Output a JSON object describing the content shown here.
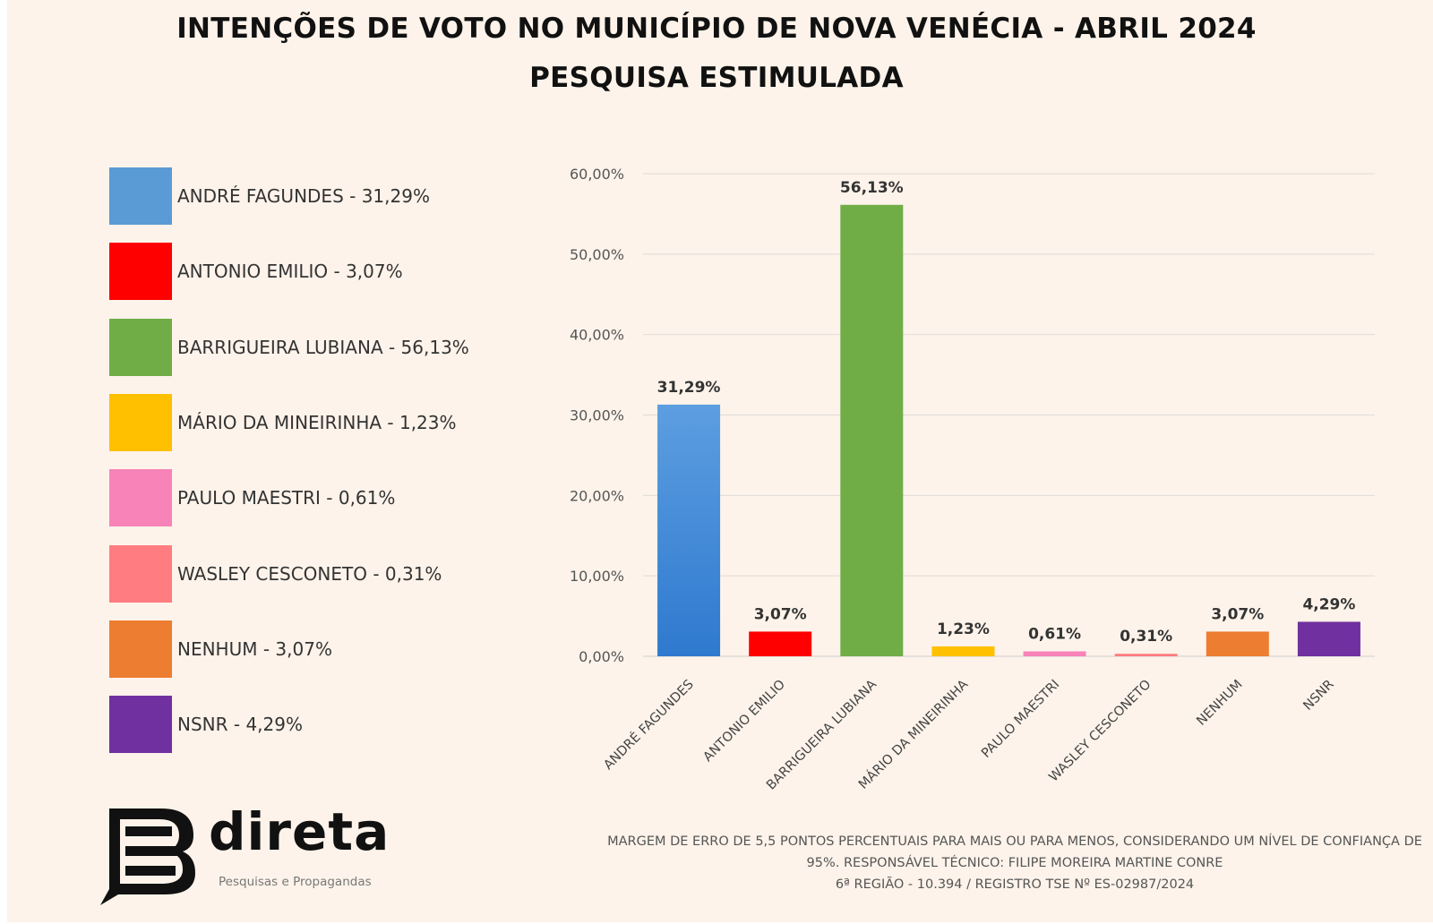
{
  "title_line1": "INTENÇÕES DE VOTO NO MUNICÍPIO DE NOVA VENÉCIA - ABRIL 2024",
  "title_line2": "PESQUISA ESTIMULADA",
  "legend": [
    {
      "label": "ANDRÉ FAGUNDES - 31,29%",
      "color": "#5b9bd5"
    },
    {
      "label": "ANTONIO EMILIO - 3,07%",
      "color": "#ff0000"
    },
    {
      "label": "BARRIGUEIRA LUBIANA - 56,13%",
      "color": "#70ad47"
    },
    {
      "label": "MÁRIO DA MINEIRINHA - 1,23%",
      "color": "#ffc000"
    },
    {
      "label": "PAULO MAESTRI - 0,61%",
      "color": "#f783b8"
    },
    {
      "label": "WASLEY CESCONETO - 0,31%",
      "color": "#ff7c80"
    },
    {
      "label": "NENHUM - 3,07%",
      "color": "#ed7d31"
    },
    {
      "label": "NSNR - 4,29%",
      "color": "#7030a0"
    }
  ],
  "chart_data": {
    "type": "bar",
    "categories": [
      "ANDRÉ FAGUNDES",
      "ANTONIO EMILIO",
      "BARRIGUEIRA LUBIANA",
      "MÁRIO DA MINEIRINHA",
      "PAULO MAESTRI",
      "WASLEY CESCONETO",
      "NENHUM",
      "NSNR"
    ],
    "values": [
      31.29,
      3.07,
      56.13,
      1.23,
      0.61,
      0.31,
      3.07,
      4.29
    ],
    "data_labels": [
      "31,29%",
      "3,07%",
      "56,13%",
      "1,23%",
      "0,61%",
      "0,31%",
      "3,07%",
      "4,29%"
    ],
    "colors": [
      "#4a8fd8",
      "#ff0000",
      "#70ad47",
      "#ffc000",
      "#f783b8",
      "#ff7c80",
      "#ed7d31",
      "#7030a0"
    ],
    "y_ticks": [
      "0,00%",
      "10,00%",
      "20,00%",
      "30,00%",
      "40,00%",
      "50,00%",
      "60,00%"
    ],
    "ylim": [
      0,
      60
    ],
    "grid": true,
    "title": "",
    "xlabel": "",
    "ylabel": ""
  },
  "footnote": {
    "line1": "MARGEM DE ERRO DE 5,5 PONTOS PERCENTUAIS PARA MAIS OU PARA MENOS, CONSIDERANDO UM NÍVEL DE CONFIANÇA DE",
    "line2": "95%. RESPONSÁVEL TÉCNICO: FILIPE MOREIRA MARTINE CONRE",
    "line3": "6ª REGIÃO - 10.394 / REGISTRO TSE Nº ES-02987/2024"
  },
  "logo": {
    "word": "direta",
    "subtitle": "Pesquisas e Propagandas"
  }
}
